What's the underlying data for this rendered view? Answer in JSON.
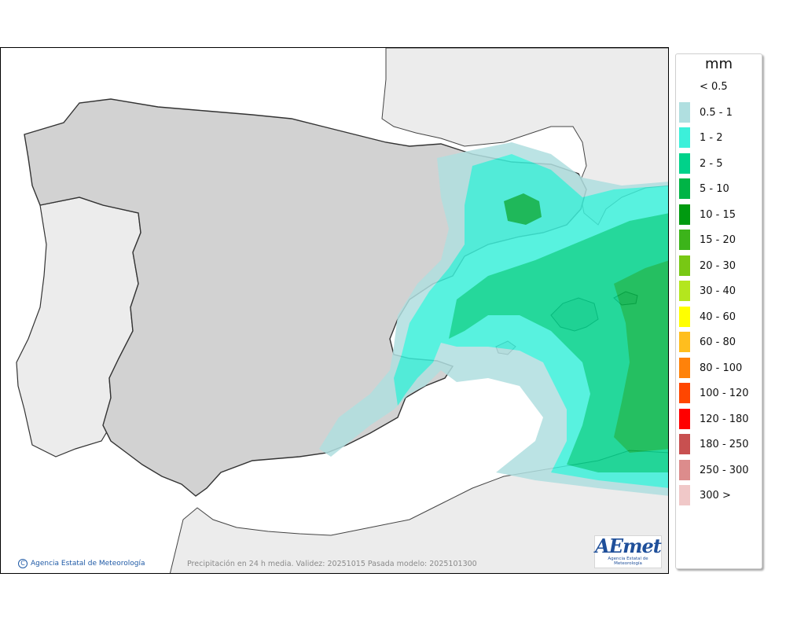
{
  "map": {
    "caption": "Precipitación en 24 h media. Validez: 20251015 Pasada modelo: 2025101300",
    "credit": "Agencia Estatal de Meteorología",
    "logo_wordmark": "AEmet",
    "logo_subtitle": "Agencia Estatal de Meteorología"
  },
  "legend": {
    "title": "mm",
    "items": [
      {
        "label": "< 0.5",
        "color": ""
      },
      {
        "label": "0.5 - 1",
        "color": "#b0dfe0"
      },
      {
        "label": "1 - 2",
        "color": "#3cf0da"
      },
      {
        "label": "2 - 5",
        "color": "#00d28a"
      },
      {
        "label": "5 - 10",
        "color": "#00b446"
      },
      {
        "label": "10 - 15",
        "color": "#009a10"
      },
      {
        "label": "15 - 20",
        "color": "#3cb41a"
      },
      {
        "label": "20 - 30",
        "color": "#78c814"
      },
      {
        "label": "30 - 40",
        "color": "#b4e61e"
      },
      {
        "label": "40 - 60",
        "color": "#ffff00"
      },
      {
        "label": "60 - 80",
        "color": "#ffbe1e"
      },
      {
        "label": "80 - 100",
        "color": "#ff820a"
      },
      {
        "label": "100 - 120",
        "color": "#ff4600"
      },
      {
        "label": "120 - 180",
        "color": "#ff0000"
      },
      {
        "label": "180 - 250",
        "color": "#c85050"
      },
      {
        "label": "250 - 300",
        "color": "#dc8c8c"
      },
      {
        "label": "300 >",
        "color": "#f0c8c8"
      }
    ]
  }
}
